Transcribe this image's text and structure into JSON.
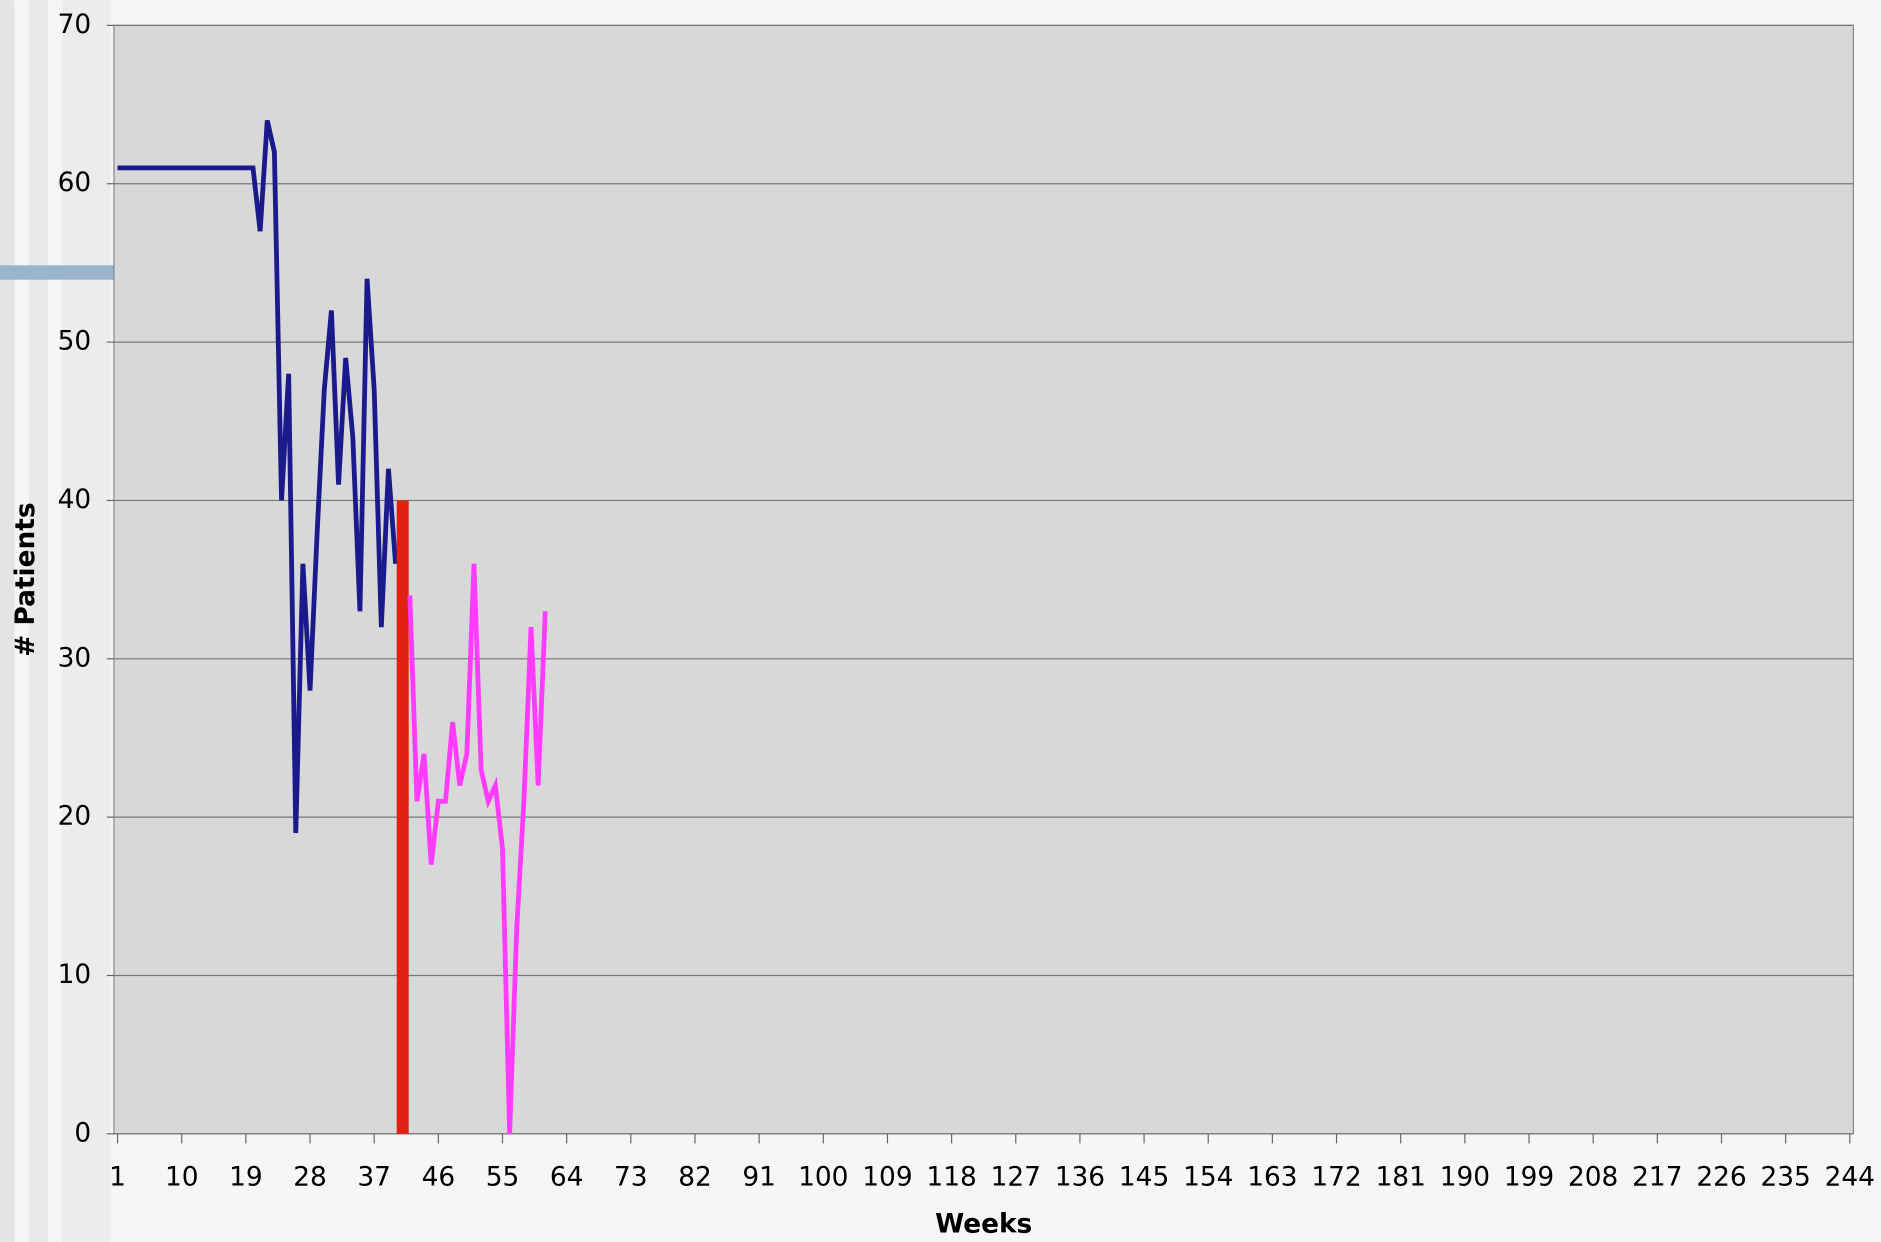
{
  "chart_data": {
    "type": "line",
    "xlabel": "Weeks",
    "ylabel": "# Patients",
    "xlim": [
      1,
      244
    ],
    "xticks": [
      1,
      10,
      19,
      28,
      37,
      46,
      55,
      64,
      73,
      82,
      91,
      100,
      109,
      118,
      127,
      136,
      145,
      154,
      163,
      172,
      181,
      190,
      199,
      208,
      217,
      226,
      235,
      244
    ],
    "ylim": [
      0,
      70
    ],
    "yticks": [
      0,
      10,
      20,
      30,
      40,
      50,
      60,
      70
    ],
    "grid": true,
    "series": [
      {
        "type": "line",
        "color": "#1a1a8c",
        "x": [
          1,
          2,
          3,
          4,
          5,
          6,
          7,
          8,
          9,
          10,
          11,
          12,
          13,
          14,
          15,
          16,
          17,
          18,
          19,
          20,
          21,
          22,
          23,
          24,
          25,
          26,
          27,
          28,
          29,
          30,
          31,
          32,
          33,
          34,
          35,
          36,
          37,
          38,
          39,
          40
        ],
        "values": [
          61,
          61,
          61,
          61,
          61,
          61,
          61,
          61,
          61,
          61,
          61,
          61,
          61,
          61,
          61,
          61,
          61,
          61,
          61,
          61,
          57,
          64,
          62,
          40,
          48,
          19,
          36,
          28,
          38,
          47,
          52,
          41,
          49,
          44,
          33,
          54,
          47,
          32,
          42,
          36
        ]
      },
      {
        "type": "bar",
        "color": "#e02010",
        "x": [
          41
        ],
        "values": [
          40
        ]
      },
      {
        "type": "line",
        "color": "#ff3cff",
        "x": [
          42,
          43,
          44,
          45,
          46,
          47,
          48,
          49,
          50,
          51,
          52,
          53,
          54,
          55,
          56,
          57,
          58,
          59,
          60,
          61
        ],
        "values": [
          34,
          21,
          24,
          17,
          21,
          21,
          26,
          22,
          24,
          36,
          23,
          21,
          22,
          18,
          0,
          13,
          21,
          32,
          22,
          33
        ]
      }
    ]
  }
}
